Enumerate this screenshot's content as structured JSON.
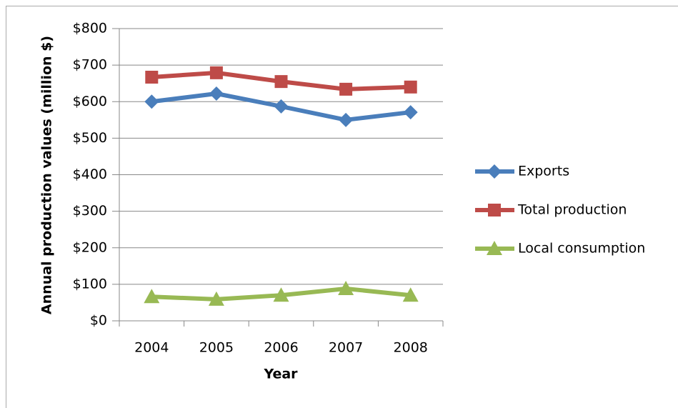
{
  "chart_data": {
    "type": "line",
    "y_label": "Annual production values (million $)",
    "x_label": "Year",
    "categories": [
      "2004",
      "2005",
      "2006",
      "2007",
      "2008"
    ],
    "series": [
      {
        "name": "Exports",
        "color": "#4a7ebb",
        "marker": "diamond",
        "values": [
          600,
          622,
          587,
          550,
          571
        ]
      },
      {
        "name": "Total production",
        "color": "#be4b48",
        "marker": "square",
        "values": [
          667,
          679,
          655,
          634,
          640
        ]
      },
      {
        "name": "Local consumption",
        "color": "#98b954",
        "marker": "triangle",
        "values": [
          66,
          59,
          70,
          88,
          70
        ]
      }
    ],
    "ylim": [
      0,
      800
    ],
    "yticks": [
      {
        "value": 0,
        "label": "$0"
      },
      {
        "value": 100,
        "label": "$100"
      },
      {
        "value": 200,
        "label": "$200"
      },
      {
        "value": 300,
        "label": "$300"
      },
      {
        "value": 400,
        "label": "$400"
      },
      {
        "value": 500,
        "label": "$500"
      },
      {
        "value": 600,
        "label": "$600"
      },
      {
        "value": 700,
        "label": "$700"
      },
      {
        "value": 800,
        "label": "$800"
      }
    ],
    "grid": true,
    "legend": "right"
  }
}
